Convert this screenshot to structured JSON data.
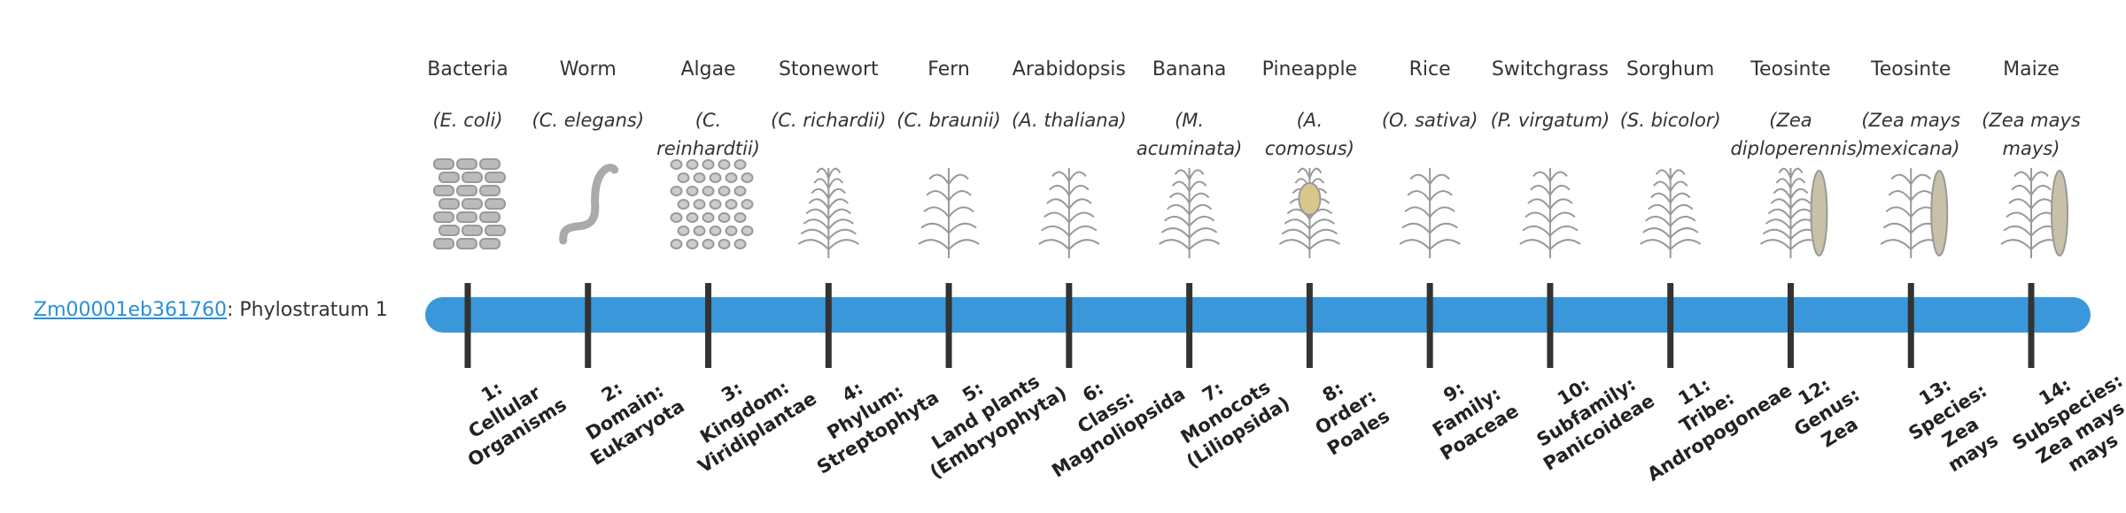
{
  "gene_id": "Zm00001eb361760",
  "gene_suffix": ": Phylostratum 1",
  "strata": [
    {
      "common": "Bacteria",
      "scientific": "(E. coli)",
      "label_lines": [
        "1:",
        "Cellular",
        "Organisms"
      ]
    },
    {
      "common": "Worm",
      "scientific": "(C. elegans)",
      "label_lines": [
        "2:",
        "Domain:",
        "Eukaryota"
      ]
    },
    {
      "common": "Algae",
      "scientific": "(C. reinhardtii)",
      "label_lines": [
        "3:",
        "Kingdom:",
        "Viridiplantae"
      ]
    },
    {
      "common": "Stonewort",
      "scientific": "(C. richardii)",
      "label_lines": [
        "4:",
        "Phylum:",
        "Streptophyta"
      ]
    },
    {
      "common": "Fern",
      "scientific": "(C. braunii)",
      "label_lines": [
        "5:",
        "Land plants",
        "(Embryophyta)"
      ]
    },
    {
      "common": "Arabidopsis",
      "scientific": "(A. thaliana)",
      "label_lines": [
        "6:",
        "Class:",
        "Magnoliopsida"
      ]
    },
    {
      "common": "Banana",
      "scientific": "(M. acuminata)",
      "label_lines": [
        "7:",
        "Monocots",
        "(Liliopsida)"
      ]
    },
    {
      "common": "Pineapple",
      "scientific": "(A. comosus)",
      "label_lines": [
        "8:",
        "Order:",
        "Poales"
      ]
    },
    {
      "common": "Rice",
      "scientific": "(O. sativa)",
      "label_lines": [
        "9:",
        "Family:",
        "Poaceae"
      ]
    },
    {
      "common": "Switchgrass",
      "scientific": "(P. virgatum)",
      "label_lines": [
        "10:",
        "Subfamily:",
        "Panicoideae"
      ]
    },
    {
      "common": "Sorghum",
      "scientific": "(S. bicolor)",
      "label_lines": [
        "11:",
        "Tribe:",
        "Andropogoneae"
      ]
    },
    {
      "common": "Teosinte",
      "scientific": "(Zea diploperennis)",
      "label_lines": [
        "12:",
        "Genus:",
        "Zea"
      ]
    },
    {
      "common": "Teosinte",
      "scientific": "(Zea mays mexicana)",
      "label_lines": [
        "13:",
        "Species:",
        "Zea",
        "mays"
      ]
    },
    {
      "common": "Maize",
      "scientific": "(Zea mays mays)",
      "label_lines": [
        "14:",
        "Subspecies:",
        "Zea mays",
        "mays"
      ]
    }
  ]
}
